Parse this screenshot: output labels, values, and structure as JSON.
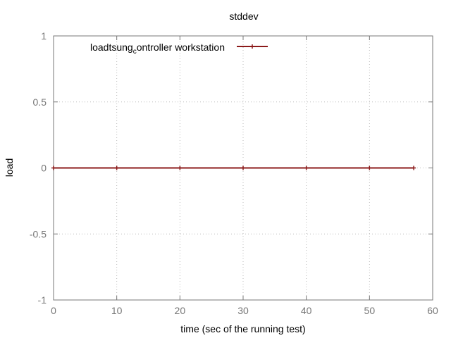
{
  "chart_data": {
    "type": "line",
    "title": "stddev",
    "xlabel": "time (sec of the running test)",
    "ylabel": "load",
    "xlim": [
      0,
      60
    ],
    "ylim": [
      -1,
      1
    ],
    "xticks": [
      0,
      10,
      20,
      30,
      40,
      50,
      60
    ],
    "yticks": [
      1,
      0.5,
      0,
      -0.5,
      -1
    ],
    "xtick_labels": [
      "0",
      "10",
      "20",
      "30",
      "40",
      "50",
      "60"
    ],
    "ytick_labels": [
      "1",
      "0.5",
      "0",
      "-0.5",
      "-1"
    ],
    "grid": true,
    "legend_position": "top-left",
    "series": [
      {
        "name": "loadtsung_controller workstation",
        "color": "#8b1a1a",
        "x": [
          0,
          10,
          20,
          30,
          40,
          50,
          57
        ],
        "y": [
          0,
          0,
          0,
          0,
          0,
          0,
          0
        ]
      }
    ],
    "legend_parts": {
      "pre": "loadtsung",
      "sub": "c",
      "post": "ontroller workstation"
    }
  }
}
